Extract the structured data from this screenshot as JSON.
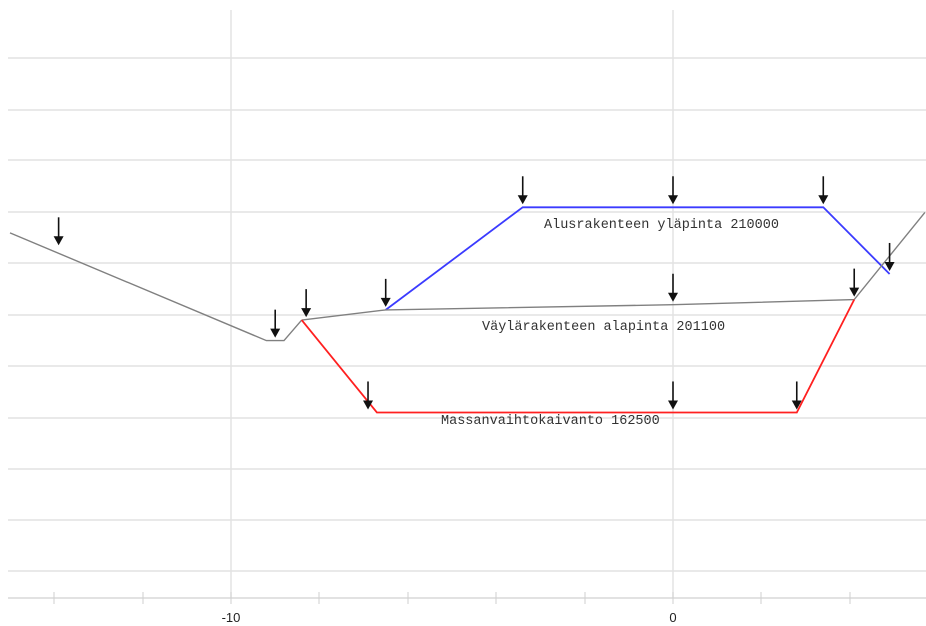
{
  "x_axis": {
    "tick_labels": [
      {
        "x": -10,
        "label": "-10"
      },
      {
        "x": 0,
        "label": "0"
      }
    ]
  },
  "colors": {
    "ground": "#808080",
    "alusrakenne": "#3b3bff",
    "vaylarakenne": "#808080",
    "massanvaihto": "#ff2020"
  },
  "layers": [
    {
      "name": "ground-profile",
      "label": "",
      "color_key": "ground",
      "points": [
        [
          -15,
          1.6
        ],
        [
          -9.2,
          -0.5
        ],
        [
          -8.8,
          -0.5
        ],
        [
          -8.4,
          -0.1
        ]
      ]
    },
    {
      "name": "alusrakenne",
      "label": "Alusrakenteen yläpinta 210000",
      "color_key": "alusrakenne",
      "points": [
        [
          -6.5,
          0.1
        ],
        [
          -3.4,
          2.1
        ],
        [
          3.4,
          2.1
        ],
        [
          4.9,
          0.8
        ]
      ]
    },
    {
      "name": "vaylarakenne",
      "label": "Väylärakenteen alapinta 201100",
      "color_key": "vaylarakenne",
      "points": [
        [
          -8.4,
          -0.1
        ],
        [
          -6.5,
          0.1
        ],
        [
          0,
          0.2
        ],
        [
          4.1,
          0.3
        ],
        [
          5.7,
          2.0
        ]
      ]
    },
    {
      "name": "massanvaihto",
      "label": "Massanvaihtokaivanto 162500",
      "color_key": "massanvaihto",
      "points": [
        [
          -8.4,
          -0.1
        ],
        [
          -6.7,
          -1.9
        ],
        [
          0,
          -1.9
        ],
        [
          2.8,
          -1.9
        ],
        [
          4.1,
          0.3
        ]
      ]
    }
  ],
  "markers": [
    [
      -13.9,
      1.3
    ],
    [
      -9.0,
      -0.5
    ],
    [
      -8.3,
      -0.1
    ],
    [
      -6.5,
      0.1
    ],
    [
      -3.4,
      2.1
    ],
    [
      0,
      2.1
    ],
    [
      3.4,
      2.1
    ],
    [
      4.9,
      0.8
    ],
    [
      0,
      0.2
    ],
    [
      4.1,
      0.3
    ],
    [
      -6.9,
      -1.9
    ],
    [
      0,
      -1.9
    ],
    [
      2.8,
      -1.9
    ]
  ]
}
